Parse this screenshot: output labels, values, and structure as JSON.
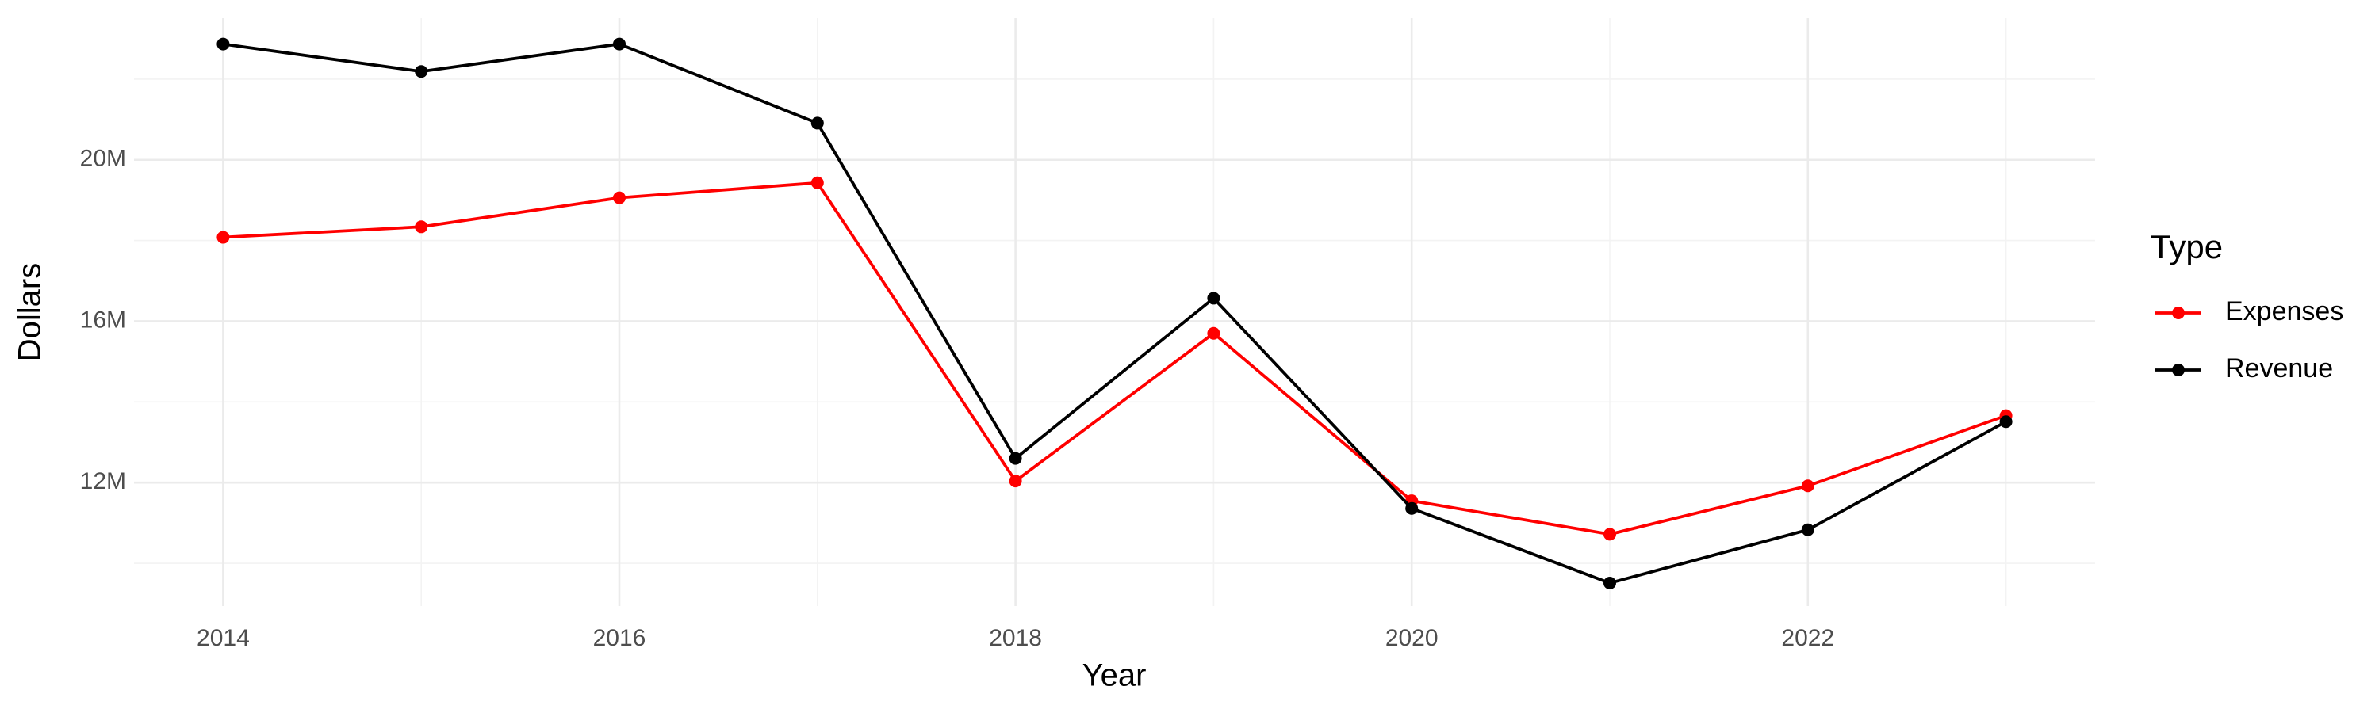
{
  "chart_data": {
    "type": "line",
    "x_label": "Year",
    "y_label": "Dollars",
    "legend_title": "Type",
    "x": [
      2014,
      2015,
      2016,
      2017,
      2018,
      2019,
      2020,
      2021,
      2022,
      2023
    ],
    "series": [
      {
        "name": "Expenses",
        "color": "#ff0000",
        "values": [
          18080000,
          18340000,
          19060000,
          19430000,
          12040000,
          15700000,
          11550000,
          10720000,
          11920000,
          13660000
        ]
      },
      {
        "name": "Revenue",
        "color": "#000000",
        "values": [
          22870000,
          22190000,
          22870000,
          20910000,
          12600000,
          16570000,
          11360000,
          9510000,
          10830000,
          13510000
        ]
      }
    ],
    "xlim": [
      2013.55,
      2023.45
    ],
    "xticks": [
      2014,
      2016,
      2018,
      2020,
      2022
    ],
    "x_minor_ticks": [
      2015,
      2017,
      2019,
      2021,
      2023
    ],
    "ylim": [
      8940000,
      23510000
    ],
    "yticks": [
      {
        "value": 12000000,
        "label": "12M"
      },
      {
        "value": 16000000,
        "label": "16M"
      },
      {
        "value": 20000000,
        "label": "20M"
      }
    ],
    "y_minor_ticks": [
      10000000,
      14000000,
      18000000,
      22000000
    ],
    "grid": true,
    "legend_position": "right"
  }
}
